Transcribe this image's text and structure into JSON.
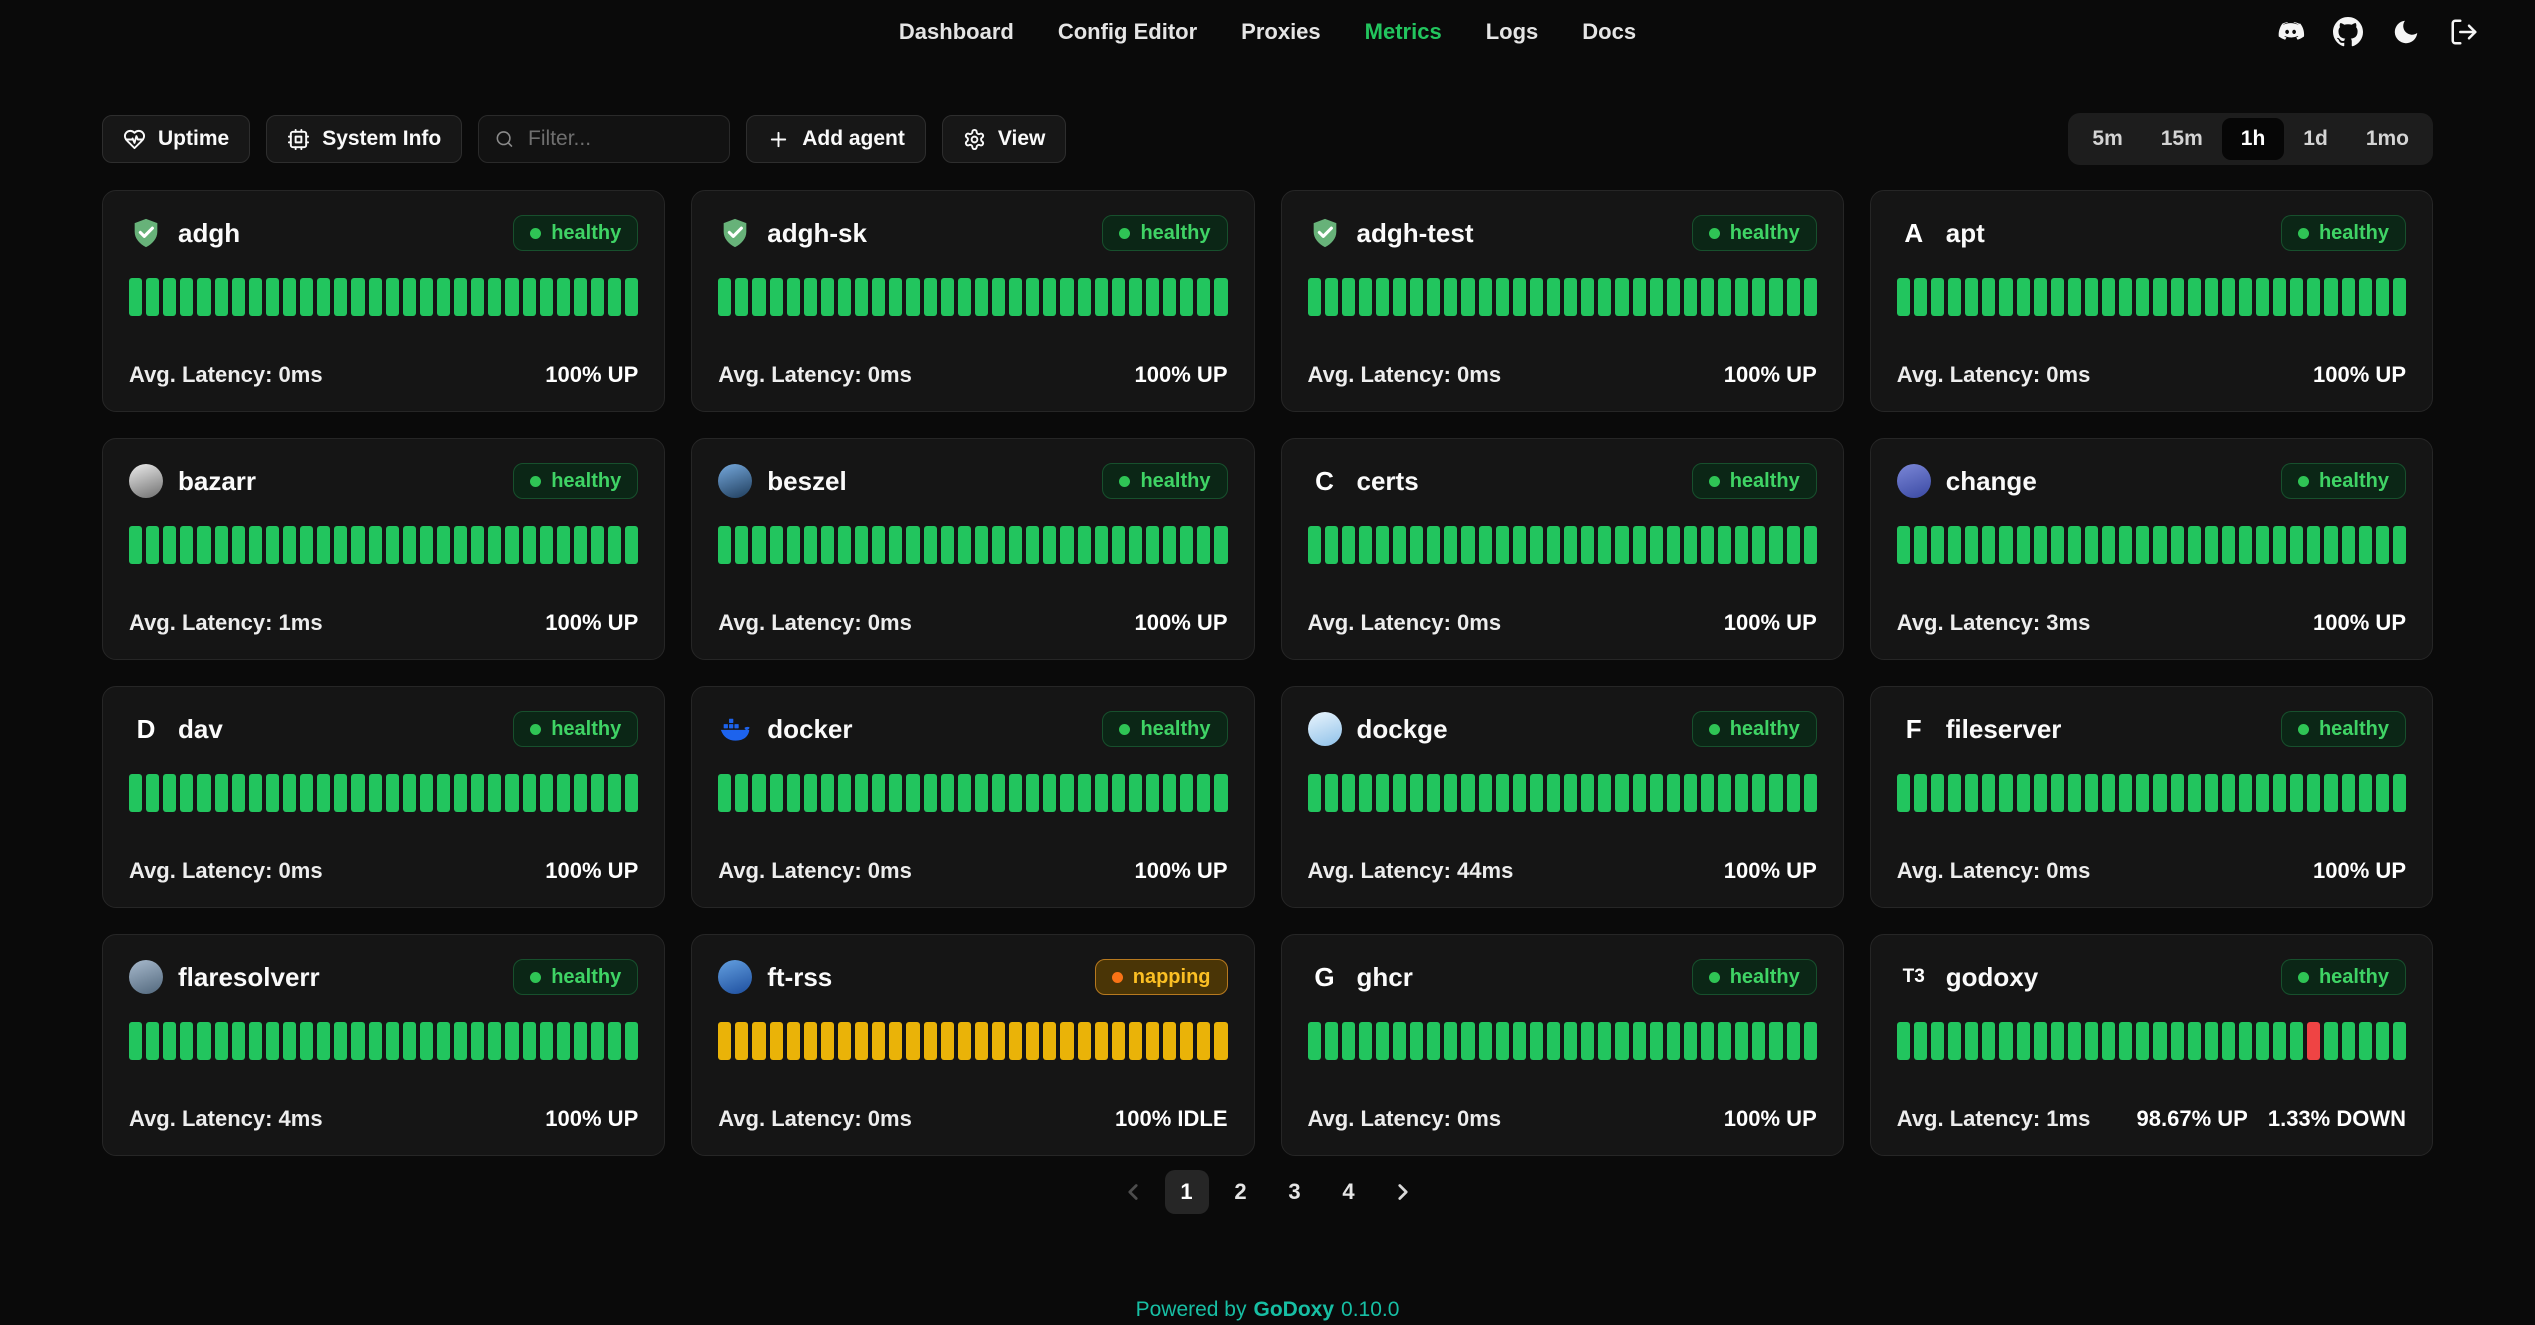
{
  "nav": {
    "items": [
      {
        "label": "Dashboard",
        "active": false
      },
      {
        "label": "Config Editor",
        "active": false
      },
      {
        "label": "Proxies",
        "active": false
      },
      {
        "label": "Metrics",
        "active": true
      },
      {
        "label": "Logs",
        "active": false
      },
      {
        "label": "Docs",
        "active": false
      }
    ],
    "icons": [
      "discord-icon",
      "github-icon",
      "theme-toggle-moon-icon",
      "logout-icon"
    ]
  },
  "toolbar": {
    "uptime_label": "Uptime",
    "system_info_label": "System Info",
    "filter_placeholder": "Filter...",
    "add_agent_label": "Add agent",
    "view_label": "View",
    "time_ranges": [
      {
        "label": "5m",
        "active": false
      },
      {
        "label": "15m",
        "active": false
      },
      {
        "label": "1h",
        "active": true
      },
      {
        "label": "1d",
        "active": false
      },
      {
        "label": "1mo",
        "active": false
      }
    ]
  },
  "strings": {
    "latency_label": "Avg. Latency:"
  },
  "colors": {
    "accent": "#22c55e",
    "brand": "#17bfa4",
    "bar_states": {
      "up": "#22c55e",
      "idle": "#eab308",
      "down": "#ef4444"
    }
  },
  "cards": [
    {
      "name": "adgh",
      "icon": {
        "kind": "shield",
        "name": "adguard-shield-icon"
      },
      "status": "healthy",
      "latency": "0ms",
      "uptime": "100% UP",
      "bars": {
        "count": 30,
        "state": "up"
      }
    },
    {
      "name": "adgh-sk",
      "icon": {
        "kind": "shield",
        "name": "adguard-shield-icon"
      },
      "status": "healthy",
      "latency": "0ms",
      "uptime": "100% UP",
      "bars": {
        "count": 30,
        "state": "up"
      }
    },
    {
      "name": "adgh-test",
      "icon": {
        "kind": "shield",
        "name": "adguard-shield-icon"
      },
      "status": "healthy",
      "latency": "0ms",
      "uptime": "100% UP",
      "bars": {
        "count": 30,
        "state": "up"
      }
    },
    {
      "name": "apt",
      "icon": {
        "kind": "letter",
        "value": "A",
        "name": "letter-fallback-icon"
      },
      "status": "healthy",
      "latency": "0ms",
      "uptime": "100% UP",
      "bars": {
        "count": 30,
        "state": "up"
      }
    },
    {
      "name": "bazarr",
      "icon": {
        "kind": "circle",
        "gradient": [
          "#ececec",
          "#6f6f6f"
        ],
        "name": "bazarr-icon"
      },
      "status": "healthy",
      "latency": "1ms",
      "uptime": "100% UP",
      "bars": {
        "count": 30,
        "state": "up"
      }
    },
    {
      "name": "beszel",
      "icon": {
        "kind": "circle",
        "gradient": [
          "#76a9dd",
          "#1f3d5c"
        ],
        "name": "beszel-icon"
      },
      "status": "healthy",
      "latency": "0ms",
      "uptime": "100% UP",
      "bars": {
        "count": 30,
        "state": "up"
      }
    },
    {
      "name": "certs",
      "icon": {
        "kind": "letter",
        "value": "C",
        "name": "letter-fallback-icon"
      },
      "status": "healthy",
      "latency": "0ms",
      "uptime": "100% UP",
      "bars": {
        "count": 30,
        "state": "up"
      }
    },
    {
      "name": "change",
      "icon": {
        "kind": "circle",
        "gradient": [
          "#7b87d7",
          "#3a49a3"
        ],
        "name": "changedetection-icon"
      },
      "status": "healthy",
      "latency": "3ms",
      "uptime": "100% UP",
      "bars": {
        "count": 30,
        "state": "up"
      }
    },
    {
      "name": "dav",
      "icon": {
        "kind": "letter",
        "value": "D",
        "name": "letter-fallback-icon"
      },
      "status": "healthy",
      "latency": "0ms",
      "uptime": "100% UP",
      "bars": {
        "count": 30,
        "state": "up"
      }
    },
    {
      "name": "docker",
      "icon": {
        "kind": "docker",
        "name": "docker-whale-icon"
      },
      "status": "healthy",
      "latency": "0ms",
      "uptime": "100% UP",
      "bars": {
        "count": 30,
        "state": "up"
      }
    },
    {
      "name": "dockge",
      "icon": {
        "kind": "circle",
        "gradient": [
          "#eaf5fd",
          "#8fc1e9"
        ],
        "name": "dockge-icon"
      },
      "status": "healthy",
      "latency": "44ms",
      "uptime": "100% UP",
      "bars": {
        "count": 30,
        "state": "up"
      }
    },
    {
      "name": "fileserver",
      "icon": {
        "kind": "letter",
        "value": "F",
        "name": "letter-fallback-icon"
      },
      "status": "healthy",
      "latency": "0ms",
      "uptime": "100% UP",
      "bars": {
        "count": 30,
        "state": "up"
      }
    },
    {
      "name": "flaresolverr",
      "icon": {
        "kind": "circle",
        "gradient": [
          "#a8bacd",
          "#51677c"
        ],
        "name": "flaresolverr-icon"
      },
      "status": "healthy",
      "latency": "4ms",
      "uptime": "100% UP",
      "bars": {
        "count": 30,
        "state": "up"
      }
    },
    {
      "name": "ft-rss",
      "icon": {
        "kind": "circle",
        "gradient": [
          "#64a0e0",
          "#1d4e9e"
        ],
        "name": "freshrss-icon"
      },
      "status": "napping",
      "latency": "0ms",
      "uptime": "100% IDLE",
      "bars": {
        "count": 30,
        "state": "idle"
      }
    },
    {
      "name": "ghcr",
      "icon": {
        "kind": "letter",
        "value": "G",
        "name": "letter-fallback-icon"
      },
      "status": "healthy",
      "latency": "0ms",
      "uptime": "100% UP",
      "bars": {
        "count": 30,
        "state": "up"
      }
    },
    {
      "name": "godoxy",
      "icon": {
        "kind": "letter",
        "value": "T3",
        "name": "godoxy-icon"
      },
      "status": "healthy",
      "latency": "1ms",
      "uptime": "98.67% UP",
      "downtime": "1.33% DOWN",
      "bars": {
        "count": 30,
        "state": "up",
        "exceptions": [
          {
            "index": 24,
            "state": "down"
          }
        ]
      }
    }
  ],
  "pagination": {
    "pages": [
      {
        "label": "1",
        "active": true
      },
      {
        "label": "2",
        "active": false
      },
      {
        "label": "3",
        "active": false
      },
      {
        "label": "4",
        "active": false
      }
    ]
  },
  "footer": {
    "powered_by": "Powered by",
    "brand": "GoDoxy",
    "version": "0.10.0"
  }
}
